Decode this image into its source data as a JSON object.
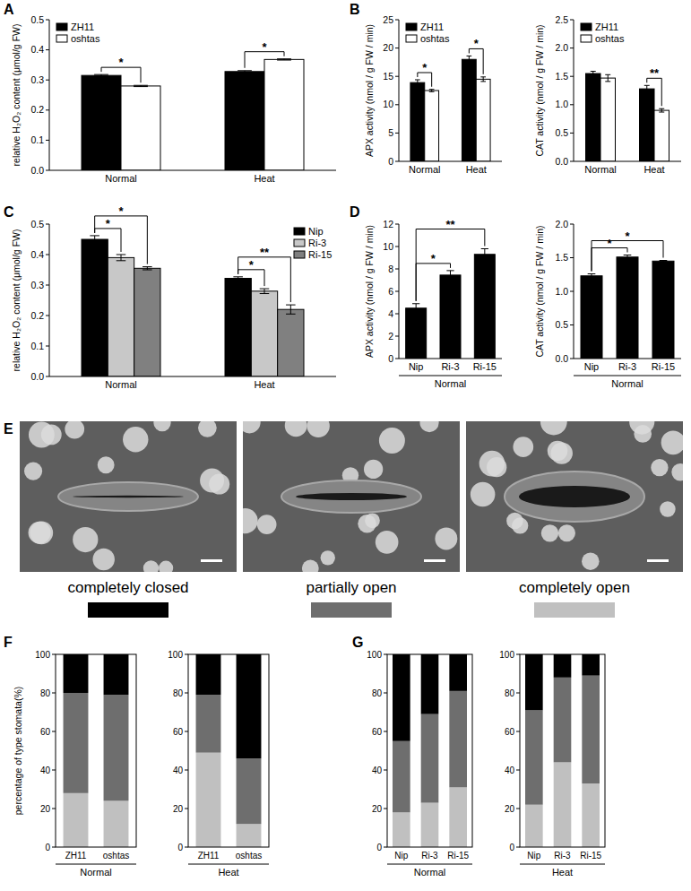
{
  "chart_data": [
    {
      "type": "bar",
      "panel_label": "A",
      "ylabel": "relative H₂O₂ content (μmol/g FW)",
      "categories": [
        "Normal",
        "Heat"
      ],
      "series": [
        {
          "name": "ZH11",
          "color": "#000000",
          "values": [
            0.315,
            0.328
          ],
          "errors": [
            0.003,
            0.003
          ]
        },
        {
          "name": "oshtas",
          "color": "#ffffff",
          "values": [
            0.28,
            0.368
          ],
          "errors": [
            0.002,
            0.002
          ]
        }
      ],
      "ylim": [
        0,
        0.5
      ],
      "yticks": [
        {
          "value": 0,
          "label": "0.0"
        },
        {
          "value": 0.1,
          "label": "0.1"
        },
        {
          "value": 0.2,
          "label": "0.2"
        },
        {
          "value": 0.3,
          "label": "0.3"
        },
        {
          "value": 0.4,
          "label": "0.4"
        },
        {
          "value": 0.5,
          "label": "0.5"
        }
      ],
      "legend": "upper left",
      "significance": [
        {
          "category": 0,
          "series": [
            0,
            1
          ],
          "label": "*"
        },
        {
          "category": 1,
          "series": [
            0,
            1
          ],
          "label": "*"
        }
      ]
    },
    {
      "type": "bar",
      "panel_label": "B",
      "ylabel": "APX activity (nmol / g FW / min)",
      "categories": [
        "Normal",
        "Heat"
      ],
      "series": [
        {
          "name": "ZH11",
          "color": "#000000",
          "values": [
            13.9,
            18.0
          ],
          "errors": [
            0.5,
            0.6
          ]
        },
        {
          "name": "oshtas",
          "color": "#ffffff",
          "values": [
            12.5,
            14.5
          ],
          "errors": [
            0.2,
            0.4
          ]
        }
      ],
      "ylim": [
        0,
        25
      ],
      "yticks": [
        0,
        5,
        10,
        15,
        20,
        25
      ],
      "legend": "upper left",
      "significance": [
        {
          "category": 0,
          "series": [
            0,
            1
          ],
          "label": "*"
        },
        {
          "category": 1,
          "series": [
            0,
            1
          ],
          "label": "*"
        }
      ]
    },
    {
      "type": "bar",
      "ylabel": "CAT activity (nmol / g FW / min)",
      "categories": [
        "Normal",
        "Heat"
      ],
      "series": [
        {
          "name": "ZH11",
          "color": "#000000",
          "values": [
            1.55,
            1.28
          ],
          "errors": [
            0.04,
            0.06
          ]
        },
        {
          "name": "oshtas",
          "color": "#ffffff",
          "values": [
            1.47,
            0.9
          ],
          "errors": [
            0.06,
            0.03
          ]
        }
      ],
      "ylim": [
        0,
        2.5
      ],
      "yticks": [
        {
          "value": 0,
          "label": "0.0"
        },
        {
          "value": 0.5,
          "label": "0.5"
        },
        {
          "value": 1,
          "label": "1.0"
        },
        {
          "value": 1.5,
          "label": "1.5"
        },
        {
          "value": 2,
          "label": "2.0"
        },
        {
          "value": 2.5,
          "label": "2.5"
        }
      ],
      "legend": "upper left",
      "significance": [
        {
          "category": 1,
          "series": [
            0,
            1
          ],
          "label": "**"
        }
      ]
    },
    {
      "type": "bar",
      "panel_label": "C",
      "ylabel": "relative H₂O₂ content (μmol/g FW)",
      "categories": [
        "Normal",
        "Heat"
      ],
      "series": [
        {
          "name": "Nip",
          "color": "#000000",
          "values": [
            0.45,
            0.322
          ],
          "errors": [
            0.012,
            0.005
          ]
        },
        {
          "name": "Ri-3",
          "color": "#c8c8c8",
          "values": [
            0.39,
            0.28
          ],
          "errors": [
            0.01,
            0.008
          ]
        },
        {
          "name": "Ri-15",
          "color": "#808080",
          "values": [
            0.355,
            0.22
          ],
          "errors": [
            0.005,
            0.015
          ]
        }
      ],
      "ylim": [
        0,
        0.5
      ],
      "yticks": [
        {
          "value": 0,
          "label": "0.0"
        },
        {
          "value": 0.1,
          "label": "0.1"
        },
        {
          "value": 0.2,
          "label": "0.2"
        },
        {
          "value": 0.3,
          "label": "0.3"
        },
        {
          "value": 0.4,
          "label": "0.4"
        },
        {
          "value": 0.5,
          "label": "0.5"
        }
      ],
      "legend": "upper right",
      "significance": [
        {
          "category": 0,
          "series": [
            0,
            1
          ],
          "label": "*"
        },
        {
          "category": 0,
          "series": [
            0,
            2
          ],
          "label": "*"
        },
        {
          "category": 1,
          "series": [
            0,
            1
          ],
          "label": "*"
        },
        {
          "category": 1,
          "series": [
            0,
            2
          ],
          "label": "**"
        }
      ]
    },
    {
      "type": "bar",
      "panel_label": "D",
      "ylabel": "APX activity (nmol / g FW / min)",
      "categories": [
        "Nip",
        "Ri-3",
        "Ri-15"
      ],
      "group_label": "Normal",
      "series": [
        {
          "color": "#000000",
          "values": [
            4.5,
            7.45,
            9.3
          ],
          "errors": [
            0.4,
            0.4,
            0.5
          ]
        }
      ],
      "ylim": [
        0,
        12
      ],
      "yticks": [
        0,
        2,
        4,
        6,
        8,
        10,
        12
      ],
      "significance": [
        {
          "categories": [
            0,
            1
          ],
          "label": "*"
        },
        {
          "categories": [
            0,
            2
          ],
          "label": "**"
        }
      ]
    },
    {
      "type": "bar",
      "ylabel": "CAT activity (nmol / g FW / min)",
      "categories": [
        "Nip",
        "Ri-3",
        "Ri-15"
      ],
      "group_label": "Normal",
      "series": [
        {
          "color": "#000000",
          "values": [
            1.23,
            1.51,
            1.45
          ],
          "errors": [
            0.03,
            0.03,
            0.01
          ]
        }
      ],
      "ylim": [
        0,
        2
      ],
      "yticks": [
        {
          "value": 0,
          "label": "0.0"
        },
        {
          "value": 0.5,
          "label": "0.5"
        },
        {
          "value": 1,
          "label": "1.0"
        },
        {
          "value": 1.5,
          "label": "1.5"
        },
        {
          "value": 2,
          "label": "2.0"
        }
      ],
      "significance": [
        {
          "categories": [
            0,
            1
          ],
          "label": "*"
        },
        {
          "categories": [
            0,
            2
          ],
          "label": "*"
        }
      ]
    },
    {
      "type": "bar",
      "panel_label": "F",
      "ylabel": "percentage of type stomata(%)",
      "stacked": true,
      "categories": [
        "ZH11",
        "oshtas"
      ],
      "group_label": "Normal",
      "series": [
        {
          "color": "#c0c0c0",
          "values": [
            28,
            24
          ]
        },
        {
          "color": "#6e6e6e",
          "values": [
            52,
            55
          ]
        },
        {
          "color": "#000000",
          "values": [
            20,
            21
          ]
        }
      ],
      "ylim": [
        0,
        100
      ],
      "yticks": [
        0,
        20,
        40,
        60,
        80,
        100
      ]
    },
    {
      "type": "bar",
      "stacked": true,
      "categories": [
        "ZH11",
        "oshtas"
      ],
      "group_label": "Heat",
      "series": [
        {
          "color": "#c0c0c0",
          "values": [
            49,
            12
          ]
        },
        {
          "color": "#6e6e6e",
          "values": [
            30,
            34
          ]
        },
        {
          "color": "#000000",
          "values": [
            21,
            54
          ]
        }
      ],
      "ylim": [
        0,
        100
      ],
      "yticks": [
        0,
        20,
        40,
        60,
        80,
        100
      ]
    },
    {
      "type": "bar",
      "panel_label": "G",
      "stacked": true,
      "categories": [
        "Nip",
        "Ri-3",
        "Ri-15"
      ],
      "group_label": "Normal",
      "series": [
        {
          "color": "#c0c0c0",
          "values": [
            18,
            23,
            31
          ]
        },
        {
          "color": "#6e6e6e",
          "values": [
            37,
            46,
            50
          ]
        },
        {
          "color": "#000000",
          "values": [
            45,
            31,
            19
          ]
        }
      ],
      "ylim": [
        0,
        100
      ],
      "yticks": [
        0,
        20,
        40,
        60,
        80,
        100
      ]
    },
    {
      "type": "bar",
      "stacked": true,
      "categories": [
        "Nip",
        "Ri-3",
        "Ri-15"
      ],
      "group_label": "Heat",
      "series": [
        {
          "color": "#c0c0c0",
          "values": [
            22,
            44,
            33
          ]
        },
        {
          "color": "#6e6e6e",
          "values": [
            49,
            44,
            56
          ]
        },
        {
          "color": "#000000",
          "values": [
            29,
            12,
            11
          ]
        }
      ],
      "ylim": [
        0,
        100
      ],
      "yticks": [
        0,
        20,
        40,
        60,
        80,
        100
      ]
    }
  ],
  "panel_e": {
    "panel_label": "E",
    "images": [
      {
        "label": "completely closed",
        "color": "#000000"
      },
      {
        "label": "partially open",
        "color": "#6e6e6e"
      },
      {
        "label": "completely open",
        "color": "#c0c0c0"
      }
    ]
  }
}
